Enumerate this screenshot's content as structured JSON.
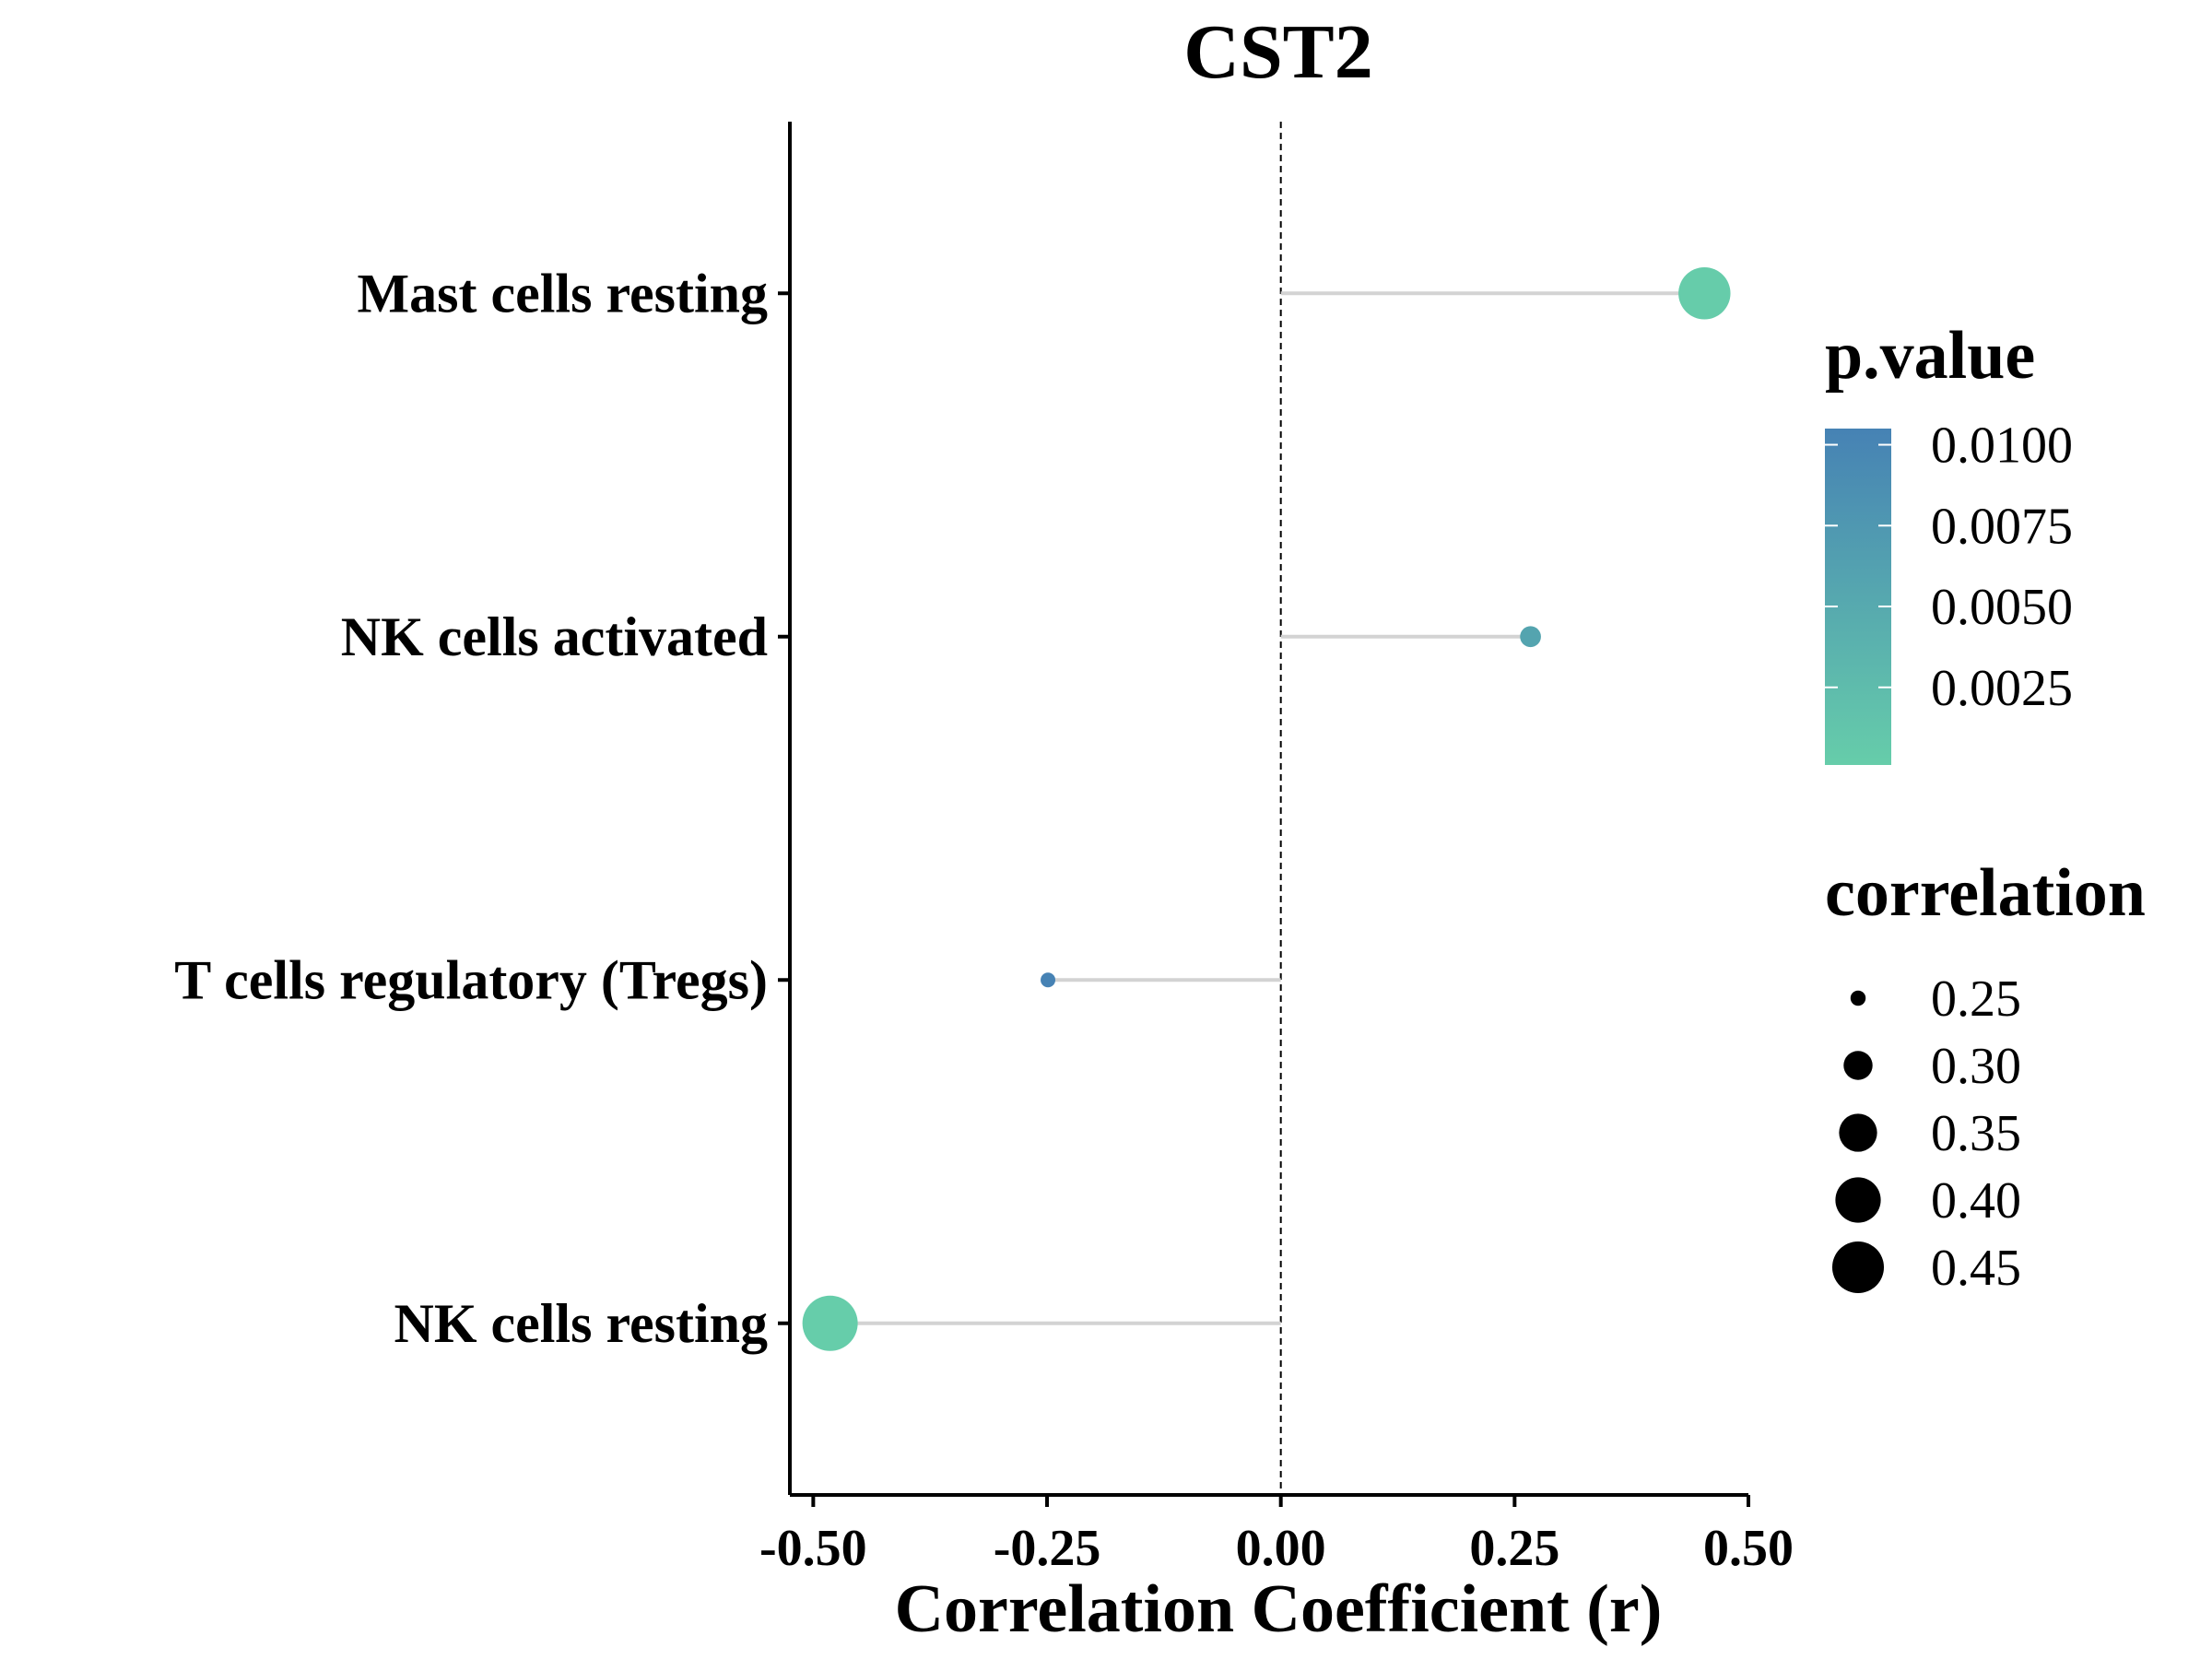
{
  "chart_data": {
    "type": "scatter",
    "subtype": "lollipop",
    "title": "CST2",
    "xlabel": "Correlation Coefficient (r)",
    "ylabel": "",
    "xlim": [
      -0.525,
      0.5
    ],
    "x_ticks": [
      "-0.50",
      "-0.25",
      "0.00",
      "0.25",
      "0.50"
    ],
    "x_tick_values": [
      -0.5,
      -0.25,
      0,
      0.25,
      0.5
    ],
    "reference_line": 0,
    "grid": false,
    "categories": [
      "Mast cells resting",
      "NK cells activated",
      "T cells regulatory (Tregs)",
      "NK cells resting"
    ],
    "points": [
      {
        "category": "Mast cells resting",
        "correlation": 0.453,
        "p_value": 0.0002
      },
      {
        "category": "NK cells activated",
        "correlation": 0.267,
        "p_value": 0.0058
      },
      {
        "category": "T cells regulatory (Tregs)",
        "correlation": -0.249,
        "p_value": 0.0105
      },
      {
        "category": "NK cells resting",
        "correlation": -0.482,
        "p_value": 0.0001
      }
    ],
    "color_legend": {
      "title": "p.value",
      "labels": [
        "0.0100",
        "0.0075",
        "0.0050",
        "0.0025"
      ],
      "values": [
        0.01,
        0.0075,
        0.005,
        0.0025
      ],
      "range": [
        0.0001,
        0.0105
      ],
      "low_color": "#66CDAA",
      "high_color": "#4682B4"
    },
    "size_legend": {
      "title": "correlation",
      "labels": [
        "0.25",
        "0.30",
        "0.35",
        "0.40",
        "0.45"
      ],
      "values": [
        0.25,
        0.3,
        0.35,
        0.4,
        0.45
      ]
    },
    "legend_position": "right",
    "segment_color": "#d3d3d3"
  }
}
